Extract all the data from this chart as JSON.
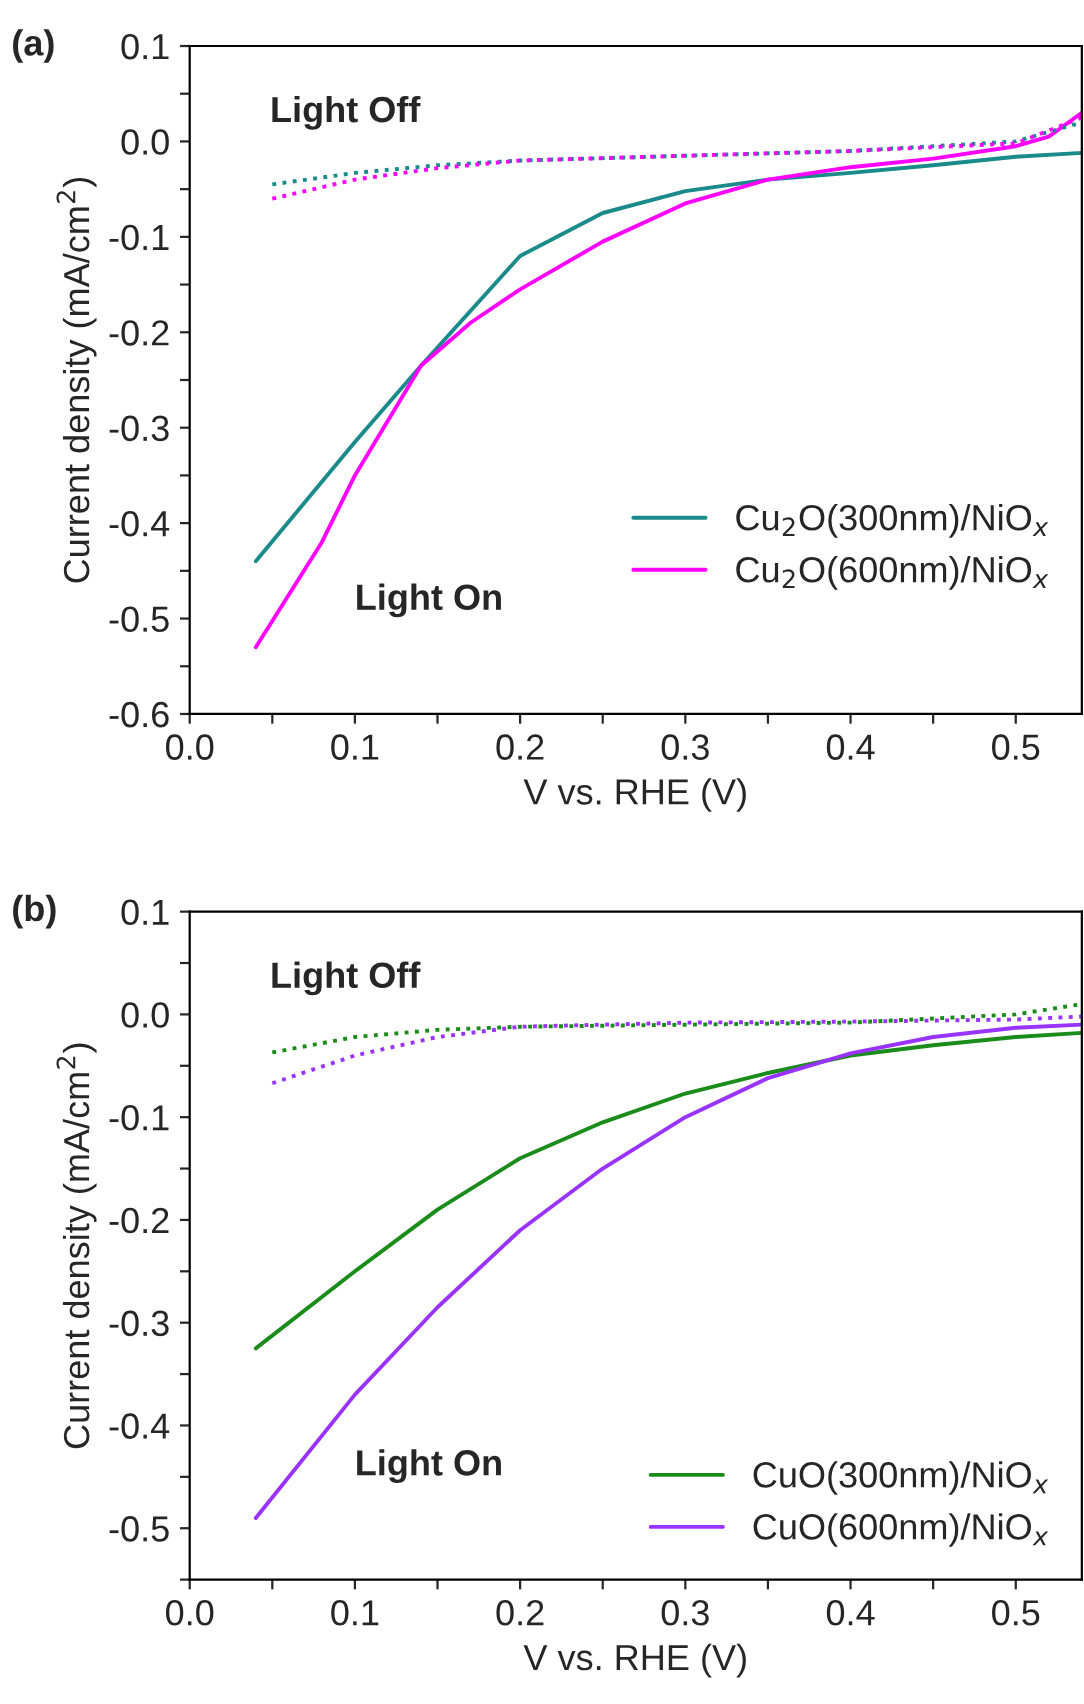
{
  "chart_data": [
    {
      "type": "line",
      "title": "(a)",
      "xlabel": "V vs. RHE (V)",
      "ylabel": "Current density (mA/cm$^{2}$)",
      "xlim": [
        0,
        0.54
      ],
      "ylim": [
        -0.6,
        0.1
      ],
      "xticks": [
        {
          "value": 0.0,
          "label": "0.0"
        },
        {
          "value": 0.05,
          "label": null
        },
        0.1,
        {
          "value": 0.15,
          "label": null
        },
        0.2,
        {
          "value": 0.25,
          "label": null
        },
        0.3,
        {
          "value": 0.35,
          "label": null
        },
        0.4,
        {
          "value": 0.45,
          "label": null
        },
        0.5
      ],
      "yticks": [
        -0.6,
        {
          "value": -0.55,
          "label": null
        },
        -0.5,
        {
          "value": -0.45,
          "label": null
        },
        -0.4,
        {
          "value": -0.35,
          "label": null
        },
        -0.3,
        {
          "value": -0.25,
          "label": null
        },
        -0.2,
        {
          "value": -0.15,
          "label": null
        },
        -0.1,
        {
          "value": -0.05,
          "label": null
        },
        {
          "value": 0.0,
          "label": "0.0"
        },
        {
          "value": 0.05,
          "label": null
        },
        0.1
      ],
      "grid": false,
      "legend": "right",
      "annotations": [
        "Light Off",
        "Light On"
      ],
      "series": [
        {
          "name": "Cu$_{2}$O(300nm)/NiO$_{x}$",
          "color": "#1a8a8a",
          "line_style": "solid",
          "x": [
            0.04,
            0.1,
            0.14,
            0.2,
            0.25,
            0.3,
            0.35,
            0.4,
            0.45,
            0.5,
            0.54
          ],
          "values": [
            -0.44,
            -0.315,
            -0.235,
            -0.12,
            -0.075,
            -0.052,
            -0.04,
            -0.033,
            -0.025,
            -0.016,
            -0.012
          ]
        },
        {
          "name": "Cu$_{2}$O(600nm)/NiO$_{x}$",
          "color": "#ff00ff",
          "line_style": "solid",
          "x": [
            0.04,
            0.08,
            0.1,
            0.14,
            0.17,
            0.2,
            0.25,
            0.3,
            0.35,
            0.4,
            0.45,
            0.5,
            0.52,
            0.54
          ],
          "values": [
            -0.53,
            -0.42,
            -0.35,
            -0.235,
            -0.19,
            -0.155,
            -0.105,
            -0.065,
            -0.04,
            -0.027,
            -0.018,
            -0.005,
            0.005,
            0.03
          ]
        },
        {
          "color": "#1a8a8a",
          "line_style": "dotted",
          "x": [
            0.05,
            0.1,
            0.15,
            0.2,
            0.3,
            0.4,
            0.5,
            0.54
          ],
          "values": [
            -0.045,
            -0.033,
            -0.025,
            -0.02,
            -0.015,
            -0.01,
            0.0,
            0.02
          ]
        },
        {
          "color": "#ff00ff",
          "line_style": "dotted",
          "x": [
            0.05,
            0.1,
            0.15,
            0.2,
            0.3,
            0.4,
            0.5,
            0.54
          ],
          "values": [
            -0.06,
            -0.04,
            -0.028,
            -0.02,
            -0.015,
            -0.01,
            -0.002,
            0.025
          ]
        }
      ]
    },
    {
      "type": "line",
      "title": "(b)",
      "xlabel": "V vs. RHE (V)",
      "ylabel": "Current density (mA/cm$^{2}$)",
      "xlim": [
        0,
        0.54
      ],
      "ylim": [
        -0.55,
        0.1
      ],
      "xticks": [
        {
          "value": 0.0,
          "label": "0.0"
        },
        {
          "value": 0.05,
          "label": null
        },
        0.1,
        {
          "value": 0.15,
          "label": null
        },
        0.2,
        {
          "value": 0.25,
          "label": null
        },
        0.3,
        {
          "value": 0.35,
          "label": null
        },
        0.4,
        {
          "value": 0.45,
          "label": null
        },
        0.5
      ],
      "yticks": [
        {
          "value": -0.55,
          "label": null
        },
        -0.5,
        {
          "value": -0.45,
          "label": null
        },
        -0.4,
        {
          "value": -0.35,
          "label": null
        },
        -0.3,
        {
          "value": -0.25,
          "label": null
        },
        -0.2,
        {
          "value": -0.15,
          "label": null
        },
        -0.1,
        {
          "value": -0.05,
          "label": null
        },
        {
          "value": 0.0,
          "label": "0.0"
        },
        {
          "value": 0.05,
          "label": null
        },
        0.1
      ],
      "grid": false,
      "legend": "bottom right",
      "annotations": [
        "Light Off",
        "Light On"
      ],
      "series": [
        {
          "name": "CuO(300nm)/NiO$_{x}$",
          "color": "#1a8c1a",
          "line_style": "solid",
          "x": [
            0.04,
            0.1,
            0.15,
            0.2,
            0.25,
            0.3,
            0.35,
            0.4,
            0.45,
            0.5,
            0.54
          ],
          "values": [
            -0.325,
            -0.25,
            -0.19,
            -0.14,
            -0.105,
            -0.077,
            -0.057,
            -0.04,
            -0.03,
            -0.022,
            -0.018
          ]
        },
        {
          "name": "CuO(600nm)/NiO$_{x}$",
          "color": "#9933ff",
          "line_style": "solid",
          "x": [
            0.04,
            0.1,
            0.15,
            0.2,
            0.25,
            0.3,
            0.35,
            0.4,
            0.45,
            0.5,
            0.54
          ],
          "values": [
            -0.49,
            -0.37,
            -0.285,
            -0.21,
            -0.15,
            -0.1,
            -0.062,
            -0.038,
            -0.022,
            -0.013,
            -0.01
          ]
        },
        {
          "color": "#1a8c1a",
          "line_style": "dotted",
          "x": [
            0.05,
            0.1,
            0.15,
            0.2,
            0.3,
            0.4,
            0.5,
            0.54
          ],
          "values": [
            -0.037,
            -0.022,
            -0.015,
            -0.012,
            -0.01,
            -0.008,
            0.0,
            0.01
          ]
        },
        {
          "color": "#9933ff",
          "line_style": "dotted",
          "x": [
            0.05,
            0.1,
            0.15,
            0.2,
            0.3,
            0.4,
            0.5,
            0.54
          ],
          "values": [
            -0.067,
            -0.04,
            -0.022,
            -0.012,
            -0.008,
            -0.007,
            -0.005,
            -0.002
          ]
        }
      ]
    }
  ]
}
